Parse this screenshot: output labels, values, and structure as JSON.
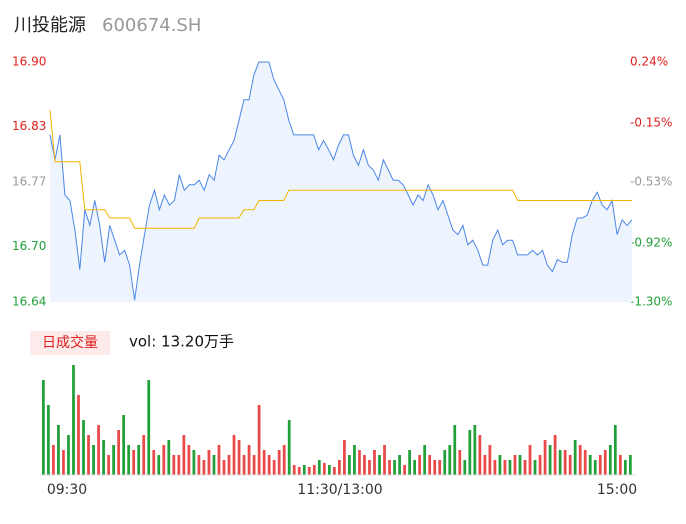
{
  "chart_data": {
    "type": "line",
    "title": "川投能源",
    "code": "600674.SH",
    "ylim": [
      16.64,
      16.9
    ],
    "yticks": [
      {
        "value": 16.9,
        "label": "16.90"
      },
      {
        "value": 16.83,
        "label": "16.83"
      },
      {
        "value": 16.77,
        "label": "16.77"
      },
      {
        "value": 16.7,
        "label": "16.70"
      },
      {
        "value": 16.64,
        "label": "16.64"
      }
    ],
    "y2lim": [
      -1.3,
      0.24
    ],
    "y2ticks": [
      {
        "value": 0.24,
        "label": "0.24%"
      },
      {
        "value": -0.15,
        "label": "-0.15%"
      },
      {
        "value": -0.53,
        "label": "-0.53%"
      },
      {
        "value": -0.92,
        "label": "-0.92%"
      },
      {
        "value": -1.3,
        "label": "-1.30%"
      }
    ],
    "tick_colors": [
      "#e02020",
      "#e02020",
      "#999999",
      "#21a03a",
      "#21a03a"
    ],
    "x_labels": [
      "09:30",
      "11:30/13:00",
      "15:00"
    ],
    "series": [
      {
        "color": "#4a86e8",
        "values": [
          16.821,
          16.794,
          16.821,
          16.756,
          16.75,
          16.718,
          16.675,
          16.74,
          16.723,
          16.75,
          16.723,
          16.683,
          16.723,
          16.707,
          16.691,
          16.696,
          16.68,
          16.642,
          16.68,
          16.713,
          16.745,
          16.761,
          16.74,
          16.756,
          16.745,
          16.75,
          16.778,
          16.761,
          16.767,
          16.767,
          16.772,
          16.761,
          16.778,
          16.772,
          16.799,
          16.794,
          16.805,
          16.815,
          16.837,
          16.859,
          16.859,
          16.886,
          16.9,
          16.9,
          16.9,
          16.881,
          16.87,
          16.859,
          16.837,
          16.821,
          16.821,
          16.821,
          16.821,
          16.821,
          16.805,
          16.815,
          16.805,
          16.794,
          16.81,
          16.821,
          16.821,
          16.799,
          16.788,
          16.805,
          16.788,
          16.783,
          16.772,
          16.794,
          16.783,
          16.772,
          16.772,
          16.767,
          16.756,
          16.745,
          16.756,
          16.75,
          16.767,
          16.756,
          16.74,
          16.75,
          16.734,
          16.718,
          16.713,
          16.723,
          16.702,
          16.707,
          16.696,
          16.68,
          16.68,
          16.707,
          16.718,
          16.702,
          16.707,
          16.707,
          16.691,
          16.691,
          16.691,
          16.696,
          16.691,
          16.696,
          16.68,
          16.673,
          16.686,
          16.683,
          16.683,
          16.713,
          16.731,
          16.731,
          16.734,
          16.75,
          16.759,
          16.745,
          16.74,
          16.75,
          16.713,
          16.729,
          16.723,
          16.729
        ]
      },
      {
        "color": "#f5b400",
        "values": [
          16.848,
          16.792,
          16.792,
          16.792,
          16.792,
          16.792,
          16.792,
          16.74,
          16.74,
          16.74,
          16.74,
          16.74,
          16.731,
          16.731,
          16.731,
          16.731,
          16.731,
          16.72,
          16.72,
          16.72,
          16.72,
          16.72,
          16.72,
          16.72,
          16.72,
          16.72,
          16.72,
          16.72,
          16.72,
          16.72,
          16.731,
          16.731,
          16.731,
          16.731,
          16.731,
          16.731,
          16.731,
          16.731,
          16.731,
          16.74,
          16.74,
          16.74,
          16.75,
          16.75,
          16.75,
          16.75,
          16.75,
          16.75,
          16.761,
          16.761,
          16.761,
          16.761,
          16.761,
          16.761,
          16.761,
          16.761,
          16.761,
          16.761,
          16.761,
          16.761,
          16.761,
          16.761,
          16.761,
          16.761,
          16.761,
          16.761,
          16.761,
          16.761,
          16.761,
          16.761,
          16.761,
          16.761,
          16.761,
          16.761,
          16.761,
          16.761,
          16.761,
          16.761,
          16.761,
          16.761,
          16.761,
          16.761,
          16.761,
          16.761,
          16.761,
          16.761,
          16.761,
          16.761,
          16.761,
          16.761,
          16.761,
          16.761,
          16.761,
          16.761,
          16.75,
          16.75,
          16.75,
          16.75,
          16.75,
          16.75,
          16.75,
          16.75,
          16.75,
          16.75,
          16.75,
          16.75,
          16.75,
          16.75,
          16.75,
          16.75,
          16.75,
          16.75,
          16.75,
          16.75,
          16.75,
          16.75,
          16.75,
          16.75
        ]
      }
    ],
    "volume_label": "日成交量",
    "volume_text": "vol: 13.20万手",
    "up_color": "#e84a4a",
    "down_color": "#21a03a",
    "volume": [
      95,
      70,
      30,
      50,
      25,
      40,
      110,
      80,
      55,
      40,
      30,
      50,
      35,
      20,
      30,
      45,
      60,
      30,
      25,
      30,
      40,
      95,
      25,
      20,
      30,
      35,
      20,
      20,
      40,
      30,
      25,
      20,
      15,
      25,
      20,
      30,
      15,
      20,
      40,
      35,
      20,
      30,
      20,
      70,
      25,
      20,
      15,
      25,
      30,
      55,
      10,
      8,
      10,
      8,
      10,
      15,
      12,
      10,
      8,
      15,
      35,
      20,
      30,
      25,
      20,
      15,
      25,
      20,
      30,
      15,
      15,
      20,
      10,
      25,
      15,
      20,
      30,
      20,
      15,
      15,
      25,
      30,
      50,
      25,
      15,
      45,
      50,
      40,
      20,
      30,
      15,
      20,
      15,
      15,
      20,
      20,
      15,
      30,
      15,
      20,
      35,
      30,
      40,
      25,
      25,
      20,
      35,
      30,
      25,
      20,
      15,
      20,
      25,
      30,
      50,
      20,
      15,
      20
    ],
    "volume_up": [
      false,
      false,
      true,
      false,
      true,
      false,
      false,
      true,
      false,
      true,
      false,
      true,
      false,
      true,
      false,
      true,
      false,
      false,
      true,
      false,
      true,
      false,
      true,
      false,
      true,
      false,
      true,
      true,
      true,
      true,
      false,
      true,
      true,
      true,
      false,
      true,
      true,
      true,
      true,
      true,
      true,
      true,
      true,
      true,
      true,
      true,
      true,
      true,
      true,
      false,
      true,
      true,
      false,
      true,
      true,
      false,
      true,
      false,
      true,
      true,
      true,
      false,
      false,
      true,
      true,
      true,
      true,
      false,
      true,
      true,
      false,
      false,
      true,
      false,
      false,
      true,
      false,
      true,
      true,
      true,
      false,
      false,
      false,
      true,
      false,
      false,
      false,
      true,
      true,
      true,
      true,
      false,
      true,
      false,
      true,
      false,
      true,
      true,
      false,
      true,
      true,
      false,
      true,
      false,
      true,
      true,
      false,
      true,
      true,
      false,
      false,
      true,
      true,
      false,
      false,
      true,
      false,
      false
    ]
  }
}
